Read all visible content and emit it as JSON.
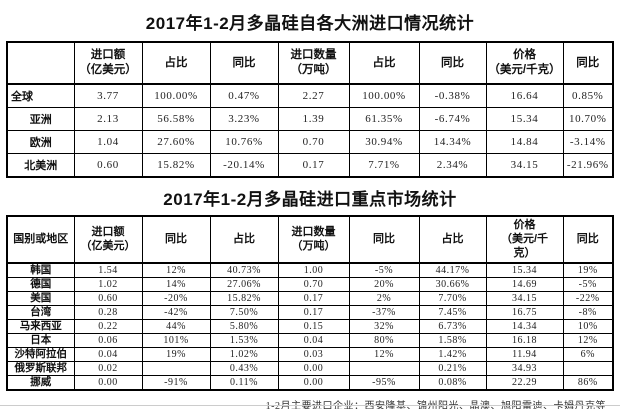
{
  "table1": {
    "title": "2017年1-2月多晶硅自各大洲进口情况统计",
    "headers": [
      "",
      "进口额\n（亿美元）",
      "占比",
      "同比",
      "进口数量\n（万吨）",
      "占比",
      "同比",
      "价格\n（美元/千克）",
      "同比"
    ],
    "rows": [
      [
        "全球",
        "3.77",
        "100.00%",
        "0.47%",
        "2.27",
        "100.00%",
        "-0.38%",
        "16.64",
        "0.85%"
      ],
      [
        "亚洲",
        "2.13",
        "56.58%",
        "3.23%",
        "1.39",
        "61.35%",
        "-6.74%",
        "15.34",
        "10.70%"
      ],
      [
        "欧洲",
        "1.04",
        "27.60%",
        "10.76%",
        "0.70",
        "30.94%",
        "14.34%",
        "14.84",
        "-3.14%"
      ],
      [
        "北美洲",
        "0.60",
        "15.82%",
        "-20.14%",
        "0.17",
        "7.71%",
        "2.34%",
        "34.15",
        "-21.96%"
      ]
    ]
  },
  "table2": {
    "title": "2017年1-2月多晶硅进口重点市场统计",
    "headers": [
      "国别或地区",
      "进口额\n（亿美元）",
      "同比",
      "占比",
      "进口数量\n（万吨）",
      "同比",
      "占比",
      "价格\n（美元/千\n克）",
      "同比"
    ],
    "rows": [
      [
        "韩国",
        "1.54",
        "12%",
        "40.73%",
        "1.00",
        "-5%",
        "44.17%",
        "15.34",
        "19%"
      ],
      [
        "德国",
        "1.02",
        "14%",
        "27.06%",
        "0.70",
        "20%",
        "30.66%",
        "14.69",
        "-5%"
      ],
      [
        "美国",
        "0.60",
        "-20%",
        "15.82%",
        "0.17",
        "2%",
        "7.70%",
        "34.15",
        "-22%"
      ],
      [
        "台湾",
        "0.28",
        "-42%",
        "7.50%",
        "0.17",
        "-37%",
        "7.45%",
        "16.75",
        "-8%"
      ],
      [
        "马来西亚",
        "0.22",
        "44%",
        "5.80%",
        "0.15",
        "32%",
        "6.73%",
        "14.34",
        "10%"
      ],
      [
        "日本",
        "0.06",
        "101%",
        "1.53%",
        "0.04",
        "80%",
        "1.58%",
        "16.18",
        "12%"
      ],
      [
        "沙特阿拉伯",
        "0.04",
        "19%",
        "1.02%",
        "0.03",
        "12%",
        "1.42%",
        "11.94",
        "6%"
      ],
      [
        "俄罗斯联邦",
        "0.02",
        "",
        "0.43%",
        "0.00",
        "",
        "0.21%",
        "34.93",
        ""
      ],
      [
        "挪威",
        "0.00",
        "-91%",
        "0.11%",
        "0.00",
        "-95%",
        "0.08%",
        "22.29",
        "86%"
      ]
    ]
  },
  "footer": {
    "note": "1-2月主要进口企业：西安隆基、锦州阳光、晶澳、旭阳雷迪、卡姆丹克等"
  }
}
